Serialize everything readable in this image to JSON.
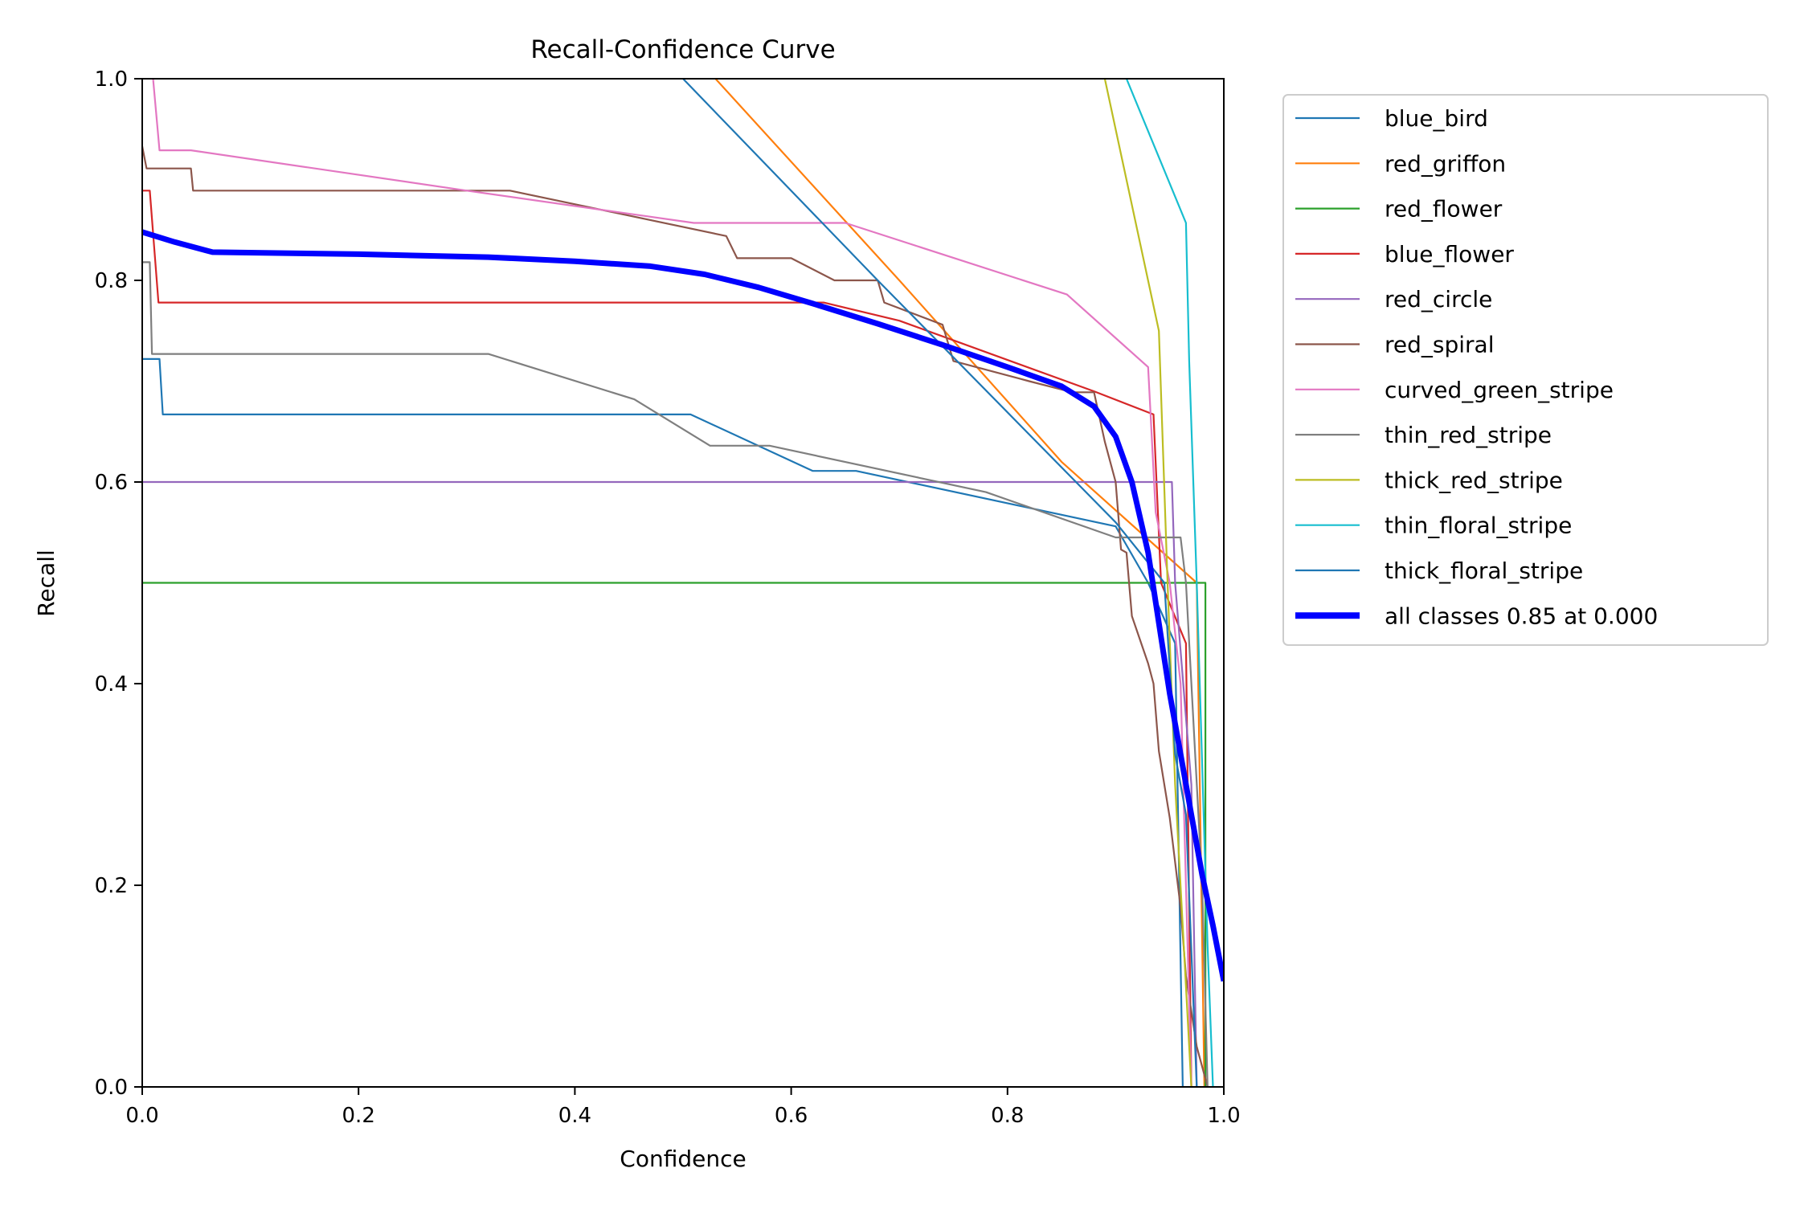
{
  "chart_data": {
    "type": "line",
    "title": "Recall-Confidence Curve",
    "xlabel": "Confidence",
    "ylabel": "Recall",
    "xlim": [
      0,
      1
    ],
    "ylim": [
      0,
      1
    ],
    "xticks": [
      "0.0",
      "0.2",
      "0.4",
      "0.6",
      "0.8",
      "1.0"
    ],
    "yticks": [
      "0.0",
      "0.2",
      "0.4",
      "0.6",
      "0.8",
      "1.0"
    ],
    "grid": false,
    "legend_position": "outside-upper-right",
    "series": [
      {
        "name": "blue_bird",
        "color": "#1f77b4",
        "emphasis": false,
        "points": [
          [
            0,
            0.722
          ],
          [
            0.016,
            0.722
          ],
          [
            0.019,
            0.667
          ],
          [
            0.3,
            0.667
          ],
          [
            0.507,
            0.667
          ],
          [
            0.62,
            0.611
          ],
          [
            0.66,
            0.611
          ],
          [
            0.9,
            0.556
          ],
          [
            0.93,
            0.5
          ],
          [
            0.955,
            0.44
          ],
          [
            0.962,
            0.0
          ]
        ]
      },
      {
        "name": "red_griffon",
        "color": "#ff7f0e",
        "emphasis": false,
        "points": [
          [
            0.53,
            1.0
          ],
          [
            0.7,
            0.8
          ],
          [
            0.85,
            0.62
          ],
          [
            0.975,
            0.5
          ],
          [
            0.982,
            0.0
          ]
        ]
      },
      {
        "name": "red_flower",
        "color": "#2ca02c",
        "emphasis": false,
        "points": [
          [
            0,
            0.5
          ],
          [
            0.983,
            0.5
          ],
          [
            0.983,
            0.0
          ]
        ]
      },
      {
        "name": "blue_flower",
        "color": "#d62728",
        "emphasis": false,
        "points": [
          [
            0,
            0.889
          ],
          [
            0.007,
            0.889
          ],
          [
            0.015,
            0.778
          ],
          [
            0.3,
            0.778
          ],
          [
            0.63,
            0.778
          ],
          [
            0.7,
            0.76
          ],
          [
            0.88,
            0.69
          ],
          [
            0.935,
            0.667
          ],
          [
            0.942,
            0.5
          ],
          [
            0.965,
            0.44
          ],
          [
            0.97,
            0.0
          ]
        ]
      },
      {
        "name": "red_circle",
        "color": "#9467bd",
        "emphasis": false,
        "points": [
          [
            0,
            0.6
          ],
          [
            0.952,
            0.6
          ],
          [
            0.955,
            0.5
          ],
          [
            0.97,
            0.3
          ],
          [
            0.975,
            0.0
          ]
        ]
      },
      {
        "name": "red_spiral",
        "color": "#8c564b",
        "emphasis": false,
        "points": [
          [
            0,
            0.933
          ],
          [
            0.004,
            0.911
          ],
          [
            0.045,
            0.911
          ],
          [
            0.047,
            0.889
          ],
          [
            0.34,
            0.889
          ],
          [
            0.54,
            0.844
          ],
          [
            0.55,
            0.822
          ],
          [
            0.6,
            0.822
          ],
          [
            0.64,
            0.8
          ],
          [
            0.68,
            0.8
          ],
          [
            0.686,
            0.778
          ],
          [
            0.74,
            0.756
          ],
          [
            0.75,
            0.72
          ],
          [
            0.82,
            0.7
          ],
          [
            0.86,
            0.689
          ],
          [
            0.88,
            0.689
          ],
          [
            0.89,
            0.64
          ],
          [
            0.9,
            0.6
          ],
          [
            0.905,
            0.533
          ],
          [
            0.91,
            0.53
          ],
          [
            0.915,
            0.467
          ],
          [
            0.93,
            0.42
          ],
          [
            0.935,
            0.4
          ],
          [
            0.94,
            0.333
          ],
          [
            0.95,
            0.267
          ],
          [
            0.96,
            0.178
          ],
          [
            0.965,
            0.11
          ],
          [
            0.975,
            0.04
          ],
          [
            0.98,
            0.02
          ],
          [
            0.985,
            0.0
          ]
        ]
      },
      {
        "name": "curved_green_stripe",
        "color": "#e377c2",
        "emphasis": false,
        "points": [
          [
            0.01,
            1.0
          ],
          [
            0.016,
            0.929
          ],
          [
            0.045,
            0.929
          ],
          [
            0.3,
            0.889
          ],
          [
            0.51,
            0.857
          ],
          [
            0.65,
            0.857
          ],
          [
            0.855,
            0.786
          ],
          [
            0.93,
            0.714
          ],
          [
            0.937,
            0.57
          ],
          [
            0.95,
            0.5
          ],
          [
            0.96,
            0.4
          ],
          [
            0.97,
            0.0
          ]
        ]
      },
      {
        "name": "thin_red_stripe",
        "color": "#7f7f7f",
        "emphasis": false,
        "points": [
          [
            0,
            0.818
          ],
          [
            0.007,
            0.818
          ],
          [
            0.009,
            0.727
          ],
          [
            0.32,
            0.727
          ],
          [
            0.455,
            0.682
          ],
          [
            0.525,
            0.636
          ],
          [
            0.58,
            0.636
          ],
          [
            0.78,
            0.59
          ],
          [
            0.9,
            0.545
          ],
          [
            0.96,
            0.545
          ],
          [
            0.965,
            0.5
          ],
          [
            0.98,
            0.2
          ],
          [
            0.985,
            0.0
          ]
        ]
      },
      {
        "name": "thick_red_stripe",
        "color": "#bcbd22",
        "emphasis": false,
        "points": [
          [
            0.89,
            1.0
          ],
          [
            0.94,
            0.75
          ],
          [
            0.948,
            0.5
          ],
          [
            0.955,
            0.3
          ],
          [
            0.97,
            0.0
          ]
        ]
      },
      {
        "name": "thin_floral_stripe",
        "color": "#17becf",
        "emphasis": false,
        "points": [
          [
            0.91,
            1.0
          ],
          [
            0.965,
            0.857
          ],
          [
            0.968,
            0.72
          ],
          [
            0.975,
            0.5
          ],
          [
            0.985,
            0.14
          ],
          [
            0.99,
            0.0
          ]
        ]
      },
      {
        "name": "thick_floral_stripe",
        "color": "#1f77b4",
        "emphasis": false,
        "points": [
          [
            0.5,
            1.0
          ],
          [
            0.68,
            0.8
          ],
          [
            0.9,
            0.56
          ],
          [
            0.945,
            0.5
          ],
          [
            0.955,
            0.33
          ],
          [
            0.965,
            0.27
          ],
          [
            0.975,
            0.0
          ]
        ]
      },
      {
        "name": "all classes 0.85 at 0.000",
        "color": "#0000ff",
        "emphasis": true,
        "points": [
          [
            0,
            0.848
          ],
          [
            0.03,
            0.838
          ],
          [
            0.065,
            0.828
          ],
          [
            0.2,
            0.826
          ],
          [
            0.32,
            0.823
          ],
          [
            0.4,
            0.819
          ],
          [
            0.47,
            0.814
          ],
          [
            0.52,
            0.806
          ],
          [
            0.57,
            0.793
          ],
          [
            0.62,
            0.777
          ],
          [
            0.68,
            0.757
          ],
          [
            0.74,
            0.736
          ],
          [
            0.8,
            0.714
          ],
          [
            0.85,
            0.695
          ],
          [
            0.88,
            0.675
          ],
          [
            0.9,
            0.645
          ],
          [
            0.915,
            0.6
          ],
          [
            0.93,
            0.53
          ],
          [
            0.94,
            0.46
          ],
          [
            0.95,
            0.39
          ],
          [
            0.96,
            0.33
          ],
          [
            0.97,
            0.27
          ],
          [
            0.98,
            0.21
          ],
          [
            0.99,
            0.16
          ],
          [
            1.0,
            0.105
          ]
        ]
      }
    ]
  }
}
